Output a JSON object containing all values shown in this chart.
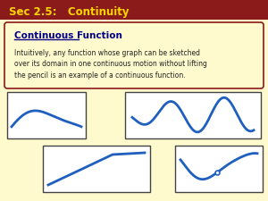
{
  "title": "Sec 2.5:   Continuity",
  "title_bg": "#8B1A1A",
  "title_fg": "#FFD700",
  "slide_bg": "#FFFACD",
  "box_bg": "#FFFACD",
  "box_edge": "#8B1A1A",
  "heading": "Continuous Function",
  "heading_color": "#00008B",
  "body_text": "Intuitively, any function whose graph can be sketched\nover its domain in one continuous motion without lifting\nthe pencil is an example of a continuous function.",
  "body_color": "#222222",
  "curve_color": "#1E5FBF",
  "curve_lw": 2.0
}
